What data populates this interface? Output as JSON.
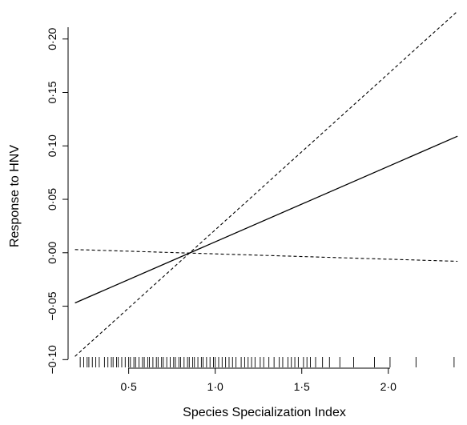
{
  "chart_data": {
    "type": "line",
    "title": "",
    "xlabel": "Species Specialization Index",
    "ylabel": "Response to HNV",
    "xlim": [
      0.15,
      2.45
    ],
    "ylim": [
      -0.108,
      0.235
    ],
    "x_ticks": [
      0.5,
      1.0,
      1.5,
      2.0
    ],
    "x_tick_labels": [
      "0·5",
      "1·0",
      "1·5",
      "2·0"
    ],
    "y_ticks": [
      -0.1,
      -0.05,
      0.0,
      0.05,
      0.1,
      0.15,
      0.2
    ],
    "y_tick_labels": [
      "−0·10",
      "−0·05",
      "0·00",
      "0·05",
      "0·10",
      "0·15",
      "0·20"
    ],
    "grid": false,
    "legend": "none",
    "series": [
      {
        "style": "solid",
        "x": [
          0.19,
          2.4
        ],
        "y": [
          -0.047,
          0.109
        ]
      },
      {
        "style": "dashed",
        "x": [
          0.19,
          2.4
        ],
        "y": [
          -0.097,
          0.226
        ]
      },
      {
        "style": "dashed",
        "x": [
          0.19,
          2.4
        ],
        "y": [
          0.003,
          -0.008
        ]
      }
    ],
    "rug_x": [
      0.22,
      0.24,
      0.26,
      0.27,
      0.29,
      0.31,
      0.33,
      0.36,
      0.38,
      0.4,
      0.41,
      0.43,
      0.44,
      0.46,
      0.48,
      0.5,
      0.51,
      0.53,
      0.54,
      0.56,
      0.58,
      0.59,
      0.61,
      0.62,
      0.64,
      0.66,
      0.67,
      0.69,
      0.7,
      0.72,
      0.74,
      0.76,
      0.77,
      0.79,
      0.8,
      0.82,
      0.84,
      0.85,
      0.87,
      0.88,
      0.9,
      0.92,
      0.93,
      0.95,
      0.97,
      0.99,
      1.0,
      1.02,
      1.04,
      1.06,
      1.08,
      1.1,
      1.12,
      1.15,
      1.17,
      1.19,
      1.21,
      1.23,
      1.26,
      1.28,
      1.31,
      1.34,
      1.37,
      1.39,
      1.42,
      1.44,
      1.46,
      1.48,
      1.51,
      1.53,
      1.55,
      1.58,
      1.62,
      1.66,
      1.72,
      1.8,
      1.92,
      2.01,
      2.16,
      2.38
    ]
  }
}
